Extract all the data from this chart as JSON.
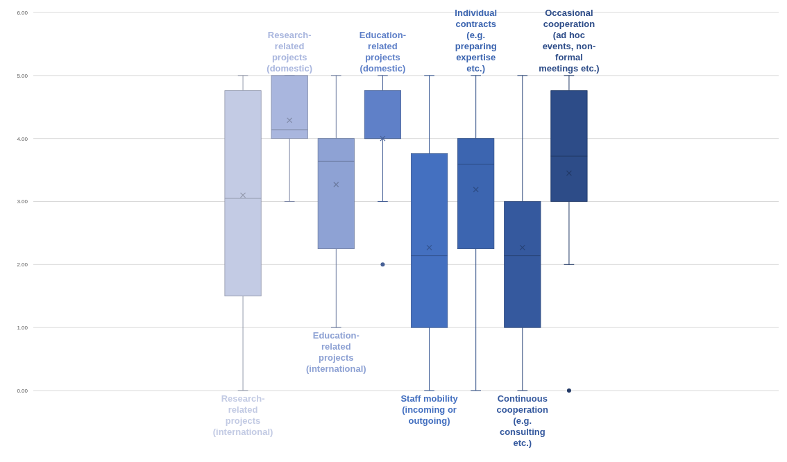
{
  "chart_data": {
    "type": "box",
    "ylim": [
      0,
      6
    ],
    "yticks": [
      {
        "value": 0,
        "label": "0.00"
      },
      {
        "value": 1,
        "label": "1.00"
      },
      {
        "value": 2,
        "label": "2.00"
      },
      {
        "value": 3,
        "label": "3.00"
      },
      {
        "value": 4,
        "label": "4.00"
      },
      {
        "value": 5,
        "label": "5.00"
      },
      {
        "value": 6,
        "label": "6.00"
      }
    ],
    "grid": "y",
    "legend": false,
    "marker": "cross",
    "series": [
      {
        "name": "Research-related projects (international)",
        "color": "#c3cbe4",
        "boxes": [
          {
            "low": 0,
            "q1": 1.5,
            "median": 3.05,
            "q3": 4.76,
            "high": 5,
            "mean": 3.1
          }
        ]
      },
      {
        "name": "Research-related projects (domestic)",
        "color": "#a9b6de",
        "boxes": [
          {
            "low": 3,
            "q1": 4,
            "median": 4.14,
            "q3": 5,
            "high": 5,
            "mean": 4.29
          }
        ]
      },
      {
        "name": "Education-related projects (international)",
        "color": "#8ea2d4",
        "boxes": [
          {
            "low": 1,
            "q1": 2.25,
            "median": 3.64,
            "q3": 4,
            "high": 5,
            "mean": 3.27
          }
        ]
      },
      {
        "name": "Education-related projects (domestic)",
        "color": "#5f80c8",
        "boxes": [
          {
            "low": 3,
            "q1": 4,
            "median": 4,
            "q3": 4.76,
            "high": 5,
            "mean": 4,
            "outliers": [
              2
            ]
          }
        ]
      },
      {
        "name": "Staff mobility (incoming or outgoing)",
        "color": "#4470c0",
        "boxes": [
          {
            "low": 0,
            "q1": 1,
            "median": 2.14,
            "q3": 3.76,
            "high": 5,
            "mean": 2.27
          }
        ]
      },
      {
        "name": "Individual contracts (e.g. preparing expertise etc.)",
        "color": "#3c65b0",
        "boxes": [
          {
            "low": 0,
            "q1": 2.25,
            "median": 3.59,
            "q3": 4,
            "high": 5,
            "mean": 3.19
          }
        ]
      },
      {
        "name": "Continuous cooperation (e.g. consulting etc.)",
        "color": "#35599e",
        "boxes": [
          {
            "low": 0,
            "q1": 1,
            "median": 2.14,
            "q3": 3,
            "high": 5,
            "mean": 2.27
          }
        ]
      },
      {
        "name": "Occasional cooperation (ad hoc events, non-formal meetings etc.)",
        "color": "#2d4c88",
        "boxes": [
          {
            "low": 2,
            "q1": 3,
            "median": 3.72,
            "q3": 4.76,
            "high": 5,
            "mean": 3.45,
            "outliers": [
              0
            ]
          }
        ]
      }
    ]
  }
}
